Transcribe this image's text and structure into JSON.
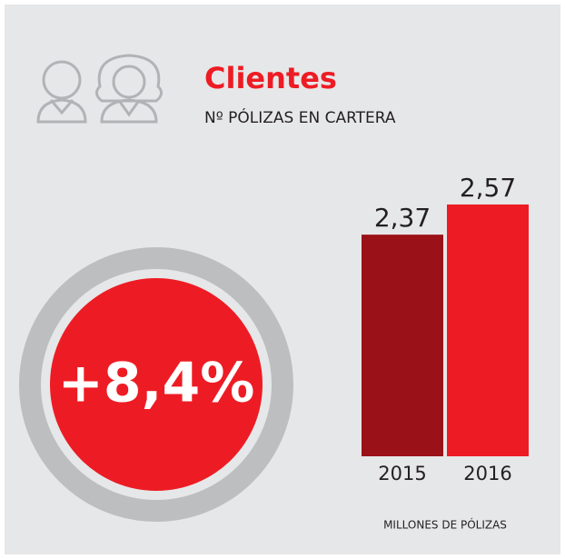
{
  "chart_data": {
    "type": "bar",
    "title": "Clientes",
    "subtitle": "Nº PÓLIZAS EN CARTERA",
    "categories": [
      "2015",
      "2016"
    ],
    "values": [
      2.37,
      2.57
    ],
    "value_labels": [
      "2,37",
      "2,57"
    ],
    "colors": [
      "#9b1118",
      "#ed1c24"
    ],
    "ylim": [
      0.9,
      2.6
    ],
    "x_label": "MILLONES DE PÓLIZAS",
    "annotation": "+8,4%"
  }
}
